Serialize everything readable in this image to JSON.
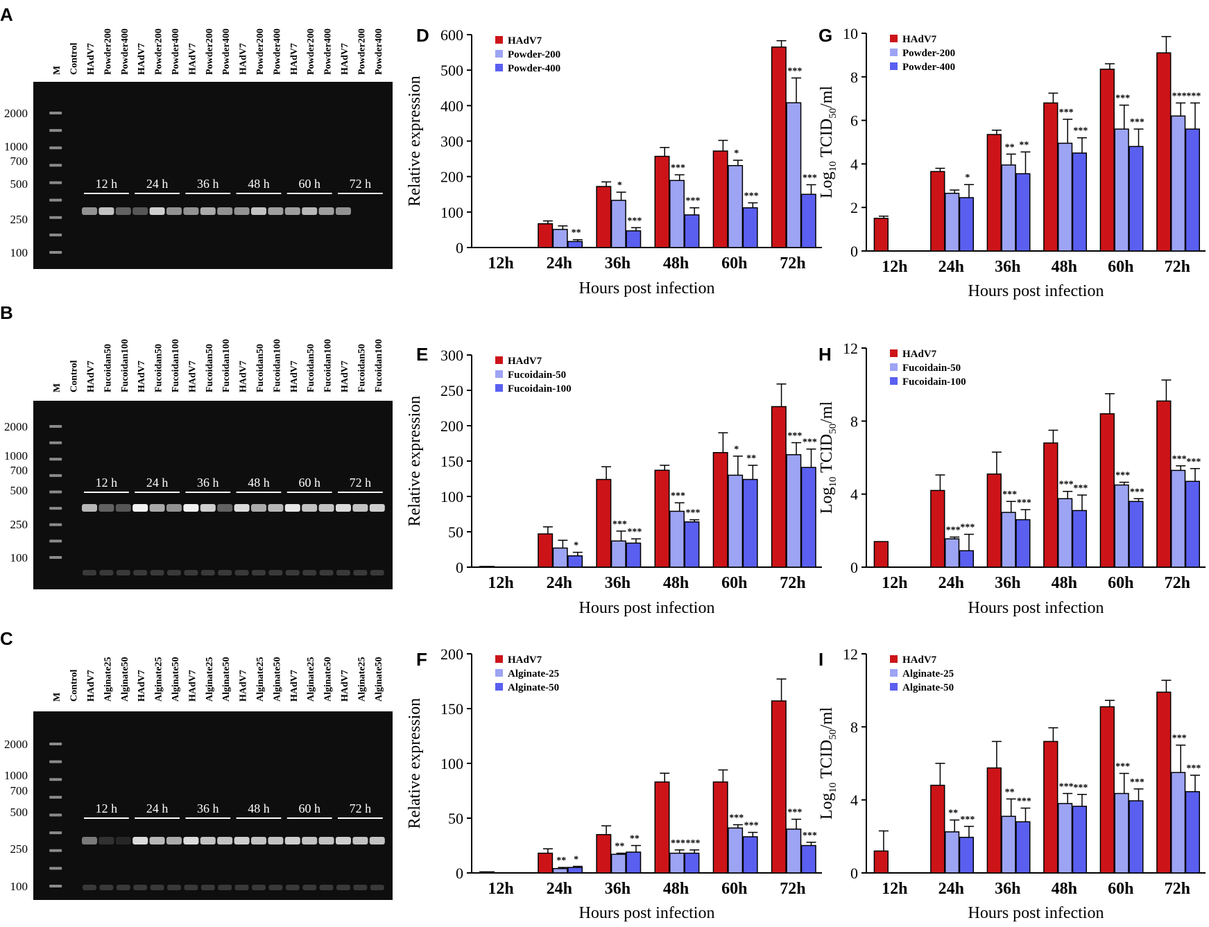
{
  "colors": {
    "hadv7": "#cc1418",
    "low": "#9da4f4",
    "high": "#5a5ff0",
    "gel_bg": "#0e0e0e"
  },
  "panel_letters": [
    "A",
    "B",
    "C",
    "D",
    "E",
    "F",
    "G",
    "H",
    "I"
  ],
  "gels": [
    {
      "panel": "A",
      "lanes": [
        "M",
        "Control",
        "HAdV7",
        "Powder200",
        "Powder400",
        "HAdV7",
        "Powder200",
        "Powder400",
        "HAdV7",
        "Powder200",
        "Powder400",
        "HAdV7",
        "Powder200",
        "Powder400",
        "HAdV7",
        "Powder200",
        "Powder400",
        "HAdV7",
        "Powder200",
        "Powder400"
      ],
      "markers": [
        "2000",
        "1000",
        "700",
        "500",
        "250",
        "100"
      ],
      "times": [
        "12 h",
        "24 h",
        "36 h",
        "48 h",
        "60 h",
        "72 h"
      ],
      "band_intensity": [
        0.55,
        0.75,
        0.35,
        0.3,
        0.8,
        0.55,
        0.55,
        0.65,
        0.55,
        0.55,
        0.75,
        0.6,
        0.6,
        0.7,
        0.6,
        0.55
      ]
    },
    {
      "panel": "B",
      "lanes": [
        "M",
        "Control",
        "HAdV7",
        "Fucoidan50",
        "Fucoidan100",
        "HAdV7",
        "Fucoidan50",
        "Fucoidan100",
        "HAdV7",
        "Fucoidan50",
        "Fucoidan100",
        "HAdV7",
        "Fucoidan50",
        "Fucoidan100",
        "HAdV7",
        "Fucoidan50",
        "Fucoidan100",
        "HAdV7",
        "Fucoidan50",
        "Fucoidan100"
      ],
      "markers": [
        "2000",
        "1000",
        "700",
        "500",
        "250",
        "100"
      ],
      "times": [
        "12 h",
        "24 h",
        "36 h",
        "48 h",
        "60 h",
        "72 h"
      ],
      "band_intensity": [
        0.7,
        0.35,
        0.3,
        0.95,
        0.65,
        0.55,
        0.95,
        0.8,
        0.35,
        0.85,
        0.65,
        0.7,
        0.9,
        0.75,
        0.75,
        0.85,
        0.75,
        0.8
      ]
    },
    {
      "panel": "C",
      "lanes": [
        "M",
        "Control",
        "HAdV7",
        "Alginate25",
        "Alginate50",
        "HAdV7",
        "Alginate25",
        "Alginate50",
        "HAdV7",
        "Alginate25",
        "Alginate50",
        "HAdV7",
        "Alginate25",
        "Alginate50",
        "HAdV7",
        "Alginate25",
        "Alginate50",
        "HAdV7",
        "Alginate25",
        "Alginate50"
      ],
      "markers": [
        "2000",
        "1000",
        "700",
        "500",
        "250",
        "100"
      ],
      "times": [
        "12 h",
        "24 h",
        "36 h",
        "48 h",
        "60 h",
        "72 h"
      ],
      "band_intensity": [
        0.45,
        0.15,
        0.1,
        0.85,
        0.7,
        0.65,
        0.85,
        0.75,
        0.75,
        0.8,
        0.75,
        0.75,
        0.8,
        0.75,
        0.75,
        0.8,
        0.75,
        0.75
      ]
    }
  ],
  "chart_data": [
    {
      "panel": "D",
      "type": "bar",
      "ylabel": "Relative expression",
      "xlabel": "Hours post infection",
      "categories": [
        "12h",
        "24h",
        "36h",
        "48h",
        "60h",
        "72h"
      ],
      "ylim": [
        0,
        600
      ],
      "yticks": [
        "0",
        "100",
        "200",
        "300",
        "400",
        "500",
        "600"
      ],
      "series": [
        {
          "name": "HAdV7",
          "values": [
            0,
            67,
            172,
            257,
            272,
            565
          ],
          "errors": [
            0,
            8,
            13,
            25,
            30,
            18
          ],
          "sig": [
            "",
            "",
            "",
            "",
            "",
            ""
          ]
        },
        {
          "name": "Powder-200",
          "values": [
            0,
            51,
            133,
            189,
            231,
            408
          ],
          "errors": [
            0,
            10,
            23,
            16,
            15,
            70
          ],
          "sig": [
            "",
            "",
            "*",
            "***",
            "*",
            "***"
          ]
        },
        {
          "name": "Powder-400",
          "values": [
            0,
            17,
            47,
            92,
            112,
            150
          ],
          "errors": [
            0,
            5,
            9,
            20,
            14,
            27
          ],
          "sig": [
            "",
            "**",
            "***",
            "***",
            "***",
            "***"
          ]
        }
      ]
    },
    {
      "panel": "E",
      "type": "bar",
      "ylabel": "Relative expression",
      "xlabel": "Hours post infection",
      "categories": [
        "12h",
        "24h",
        "36h",
        "48h",
        "60h",
        "72h"
      ],
      "ylim": [
        0,
        300
      ],
      "yticks": [
        "0",
        "50",
        "100",
        "150",
        "200",
        "250",
        "300"
      ],
      "series": [
        {
          "name": "HAdV7",
          "values": [
            1,
            47,
            124,
            137,
            162,
            227
          ],
          "errors": [
            0,
            10,
            18,
            7,
            28,
            32
          ],
          "sig": [
            "",
            "",
            "",
            "",
            "",
            ""
          ]
        },
        {
          "name": "Fucoidain-50",
          "values": [
            0,
            27,
            37,
            79,
            130,
            159
          ],
          "errors": [
            0,
            11,
            14,
            12,
            27,
            17
          ],
          "sig": [
            "",
            "",
            "***",
            "***",
            "*",
            "***"
          ]
        },
        {
          "name": "Fucoidain-100",
          "values": [
            0,
            16,
            34,
            64,
            124,
            141
          ],
          "errors": [
            0,
            5,
            6,
            3,
            20,
            26
          ],
          "sig": [
            "",
            "*",
            "***",
            "***",
            "**",
            "***"
          ]
        }
      ]
    },
    {
      "panel": "F",
      "type": "bar",
      "ylabel": "Relative expression",
      "xlabel": "Hours post infection",
      "categories": [
        "12h",
        "24h",
        "36h",
        "48h",
        "60h",
        "72h"
      ],
      "ylim": [
        0,
        200
      ],
      "yticks": [
        "0",
        "50",
        "100",
        "150",
        "200"
      ],
      "series": [
        {
          "name": "HAdV7",
          "values": [
            1,
            18,
            35,
            83,
            83,
            157
          ],
          "errors": [
            0,
            4,
            8,
            8,
            11,
            20
          ],
          "sig": [
            "",
            "",
            "",
            "",
            "",
            ""
          ]
        },
        {
          "name": "Alginate-25",
          "values": [
            0,
            4,
            17,
            18,
            41,
            40
          ],
          "errors": [
            0,
            1,
            1,
            3,
            3,
            9
          ],
          "sig": [
            "",
            "**",
            "**",
            "***",
            "***",
            "***"
          ]
        },
        {
          "name": "Alginate-50",
          "values": [
            0,
            5,
            19,
            18,
            33,
            25
          ],
          "errors": [
            0,
            1,
            6,
            3,
            4,
            3
          ],
          "sig": [
            "",
            "*",
            "**",
            "***",
            "***",
            "***"
          ]
        }
      ]
    },
    {
      "panel": "G",
      "type": "bar",
      "ylabel": "Log10 TCID50/ml",
      "xlabel": "Hours post infection",
      "categories": [
        "12h",
        "24h",
        "36h",
        "48h",
        "60h",
        "72h"
      ],
      "ylim": [
        0,
        10
      ],
      "yticks": [
        "0",
        "2",
        "4",
        "6",
        "8",
        "10"
      ],
      "series": [
        {
          "name": "HAdV7",
          "values": [
            1.5,
            3.65,
            5.35,
            6.8,
            8.35,
            9.1
          ],
          "errors": [
            0.1,
            0.15,
            0.2,
            0.45,
            0.25,
            0.75
          ],
          "sig": [
            "",
            "",
            "",
            "",
            "",
            ""
          ]
        },
        {
          "name": "Powder-200",
          "values": [
            0,
            2.65,
            3.95,
            4.95,
            5.6,
            6.2
          ],
          "errors": [
            0,
            0.15,
            0.5,
            1.1,
            1.1,
            0.6
          ],
          "sig": [
            "",
            "",
            "**",
            "***",
            "***",
            "***"
          ]
        },
        {
          "name": "Powder-400",
          "values": [
            0,
            2.45,
            3.55,
            4.5,
            4.8,
            5.6
          ],
          "errors": [
            0,
            0.6,
            1.0,
            0.7,
            0.8,
            1.2
          ],
          "sig": [
            "",
            "*",
            "**",
            "***",
            "***",
            "***"
          ]
        }
      ]
    },
    {
      "panel": "H",
      "type": "bar",
      "ylabel": "Log10 TCID50/ml",
      "xlabel": "Hours post infection",
      "categories": [
        "12h",
        "24h",
        "36h",
        "48h",
        "60h",
        "72h"
      ],
      "ylim": [
        0,
        12
      ],
      "yticks": [
        "0",
        "4",
        "8",
        "12"
      ],
      "series": [
        {
          "name": "HAdV7",
          "values": [
            1.4,
            4.2,
            5.1,
            6.8,
            8.4,
            9.1
          ],
          "errors": [
            0,
            0.85,
            1.2,
            0.7,
            1.1,
            1.15
          ],
          "sig": [
            "",
            "",
            "",
            "",
            "",
            ""
          ]
        },
        {
          "name": "Fucoidain-50",
          "values": [
            0,
            1.55,
            3.0,
            3.75,
            4.5,
            5.3
          ],
          "errors": [
            0,
            0.1,
            0.6,
            0.4,
            0.15,
            0.25
          ],
          "sig": [
            "",
            "***",
            "***",
            "***",
            "***",
            "***"
          ]
        },
        {
          "name": "Fucoidain-100",
          "values": [
            0,
            0.9,
            2.6,
            3.1,
            3.6,
            4.7
          ],
          "errors": [
            0,
            0.9,
            0.55,
            0.85,
            0.15,
            0.7
          ],
          "sig": [
            "",
            "***",
            "***",
            "***",
            "***",
            "***"
          ]
        }
      ]
    },
    {
      "panel": "I",
      "type": "bar",
      "ylabel": "Log10 TCID50/ml",
      "xlabel": "Hours post infection",
      "categories": [
        "12h",
        "24h",
        "36h",
        "48h",
        "60h",
        "72h"
      ],
      "ylim": [
        0,
        12
      ],
      "yticks": [
        "0",
        "4",
        "8",
        "12"
      ],
      "series": [
        {
          "name": "HAdV7",
          "values": [
            1.2,
            4.8,
            5.75,
            7.2,
            9.1,
            9.9
          ],
          "errors": [
            1.1,
            1.2,
            1.45,
            0.75,
            0.35,
            0.65
          ],
          "sig": [
            "",
            "",
            "",
            "",
            "",
            ""
          ]
        },
        {
          "name": "Alginate-25",
          "values": [
            0,
            2.25,
            3.1,
            3.8,
            4.35,
            5.5
          ],
          "errors": [
            0,
            0.65,
            0.95,
            0.55,
            1.1,
            1.5
          ],
          "sig": [
            "",
            "**",
            "**",
            "***",
            "***",
            "***"
          ]
        },
        {
          "name": "Alginate-50",
          "values": [
            0,
            1.95,
            2.8,
            3.65,
            3.95,
            4.45
          ],
          "errors": [
            0,
            0.6,
            0.75,
            0.65,
            0.65,
            0.9
          ],
          "sig": [
            "",
            "***",
            "***",
            "***",
            "***",
            "***"
          ]
        }
      ]
    }
  ]
}
